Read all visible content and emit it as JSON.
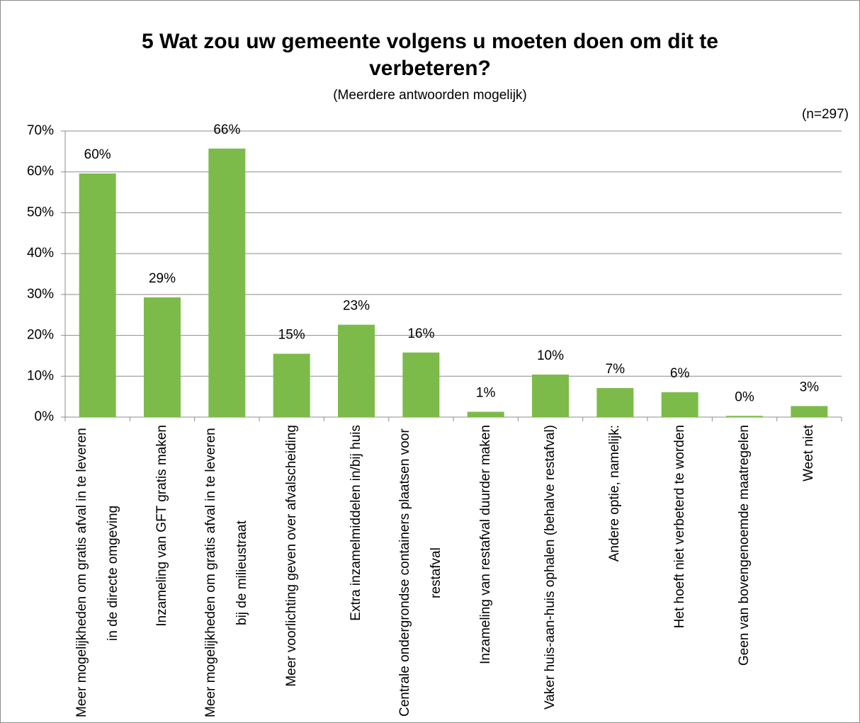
{
  "chart_data": {
    "type": "bar",
    "title": "5 Wat zou uw gemeente volgens u moeten doen om dit te verbeteren?",
    "subtitle": "(Meerdere antwoorden mogelijk)",
    "annotation": "(n=297)",
    "categories": [
      "Meer mogelijkheden om gratis afval in te leveren in de directe omgeving",
      "Inzameling van GFT gratis maken",
      "Meer mogelijkheden om gratis afval in te leveren bij de milieustraat",
      "Meer voorlichting geven over afvalscheiding",
      "Extra inzamelmiddelen in/bij huis",
      "Centrale ondergrondse containers plaatsen voor restafval",
      "Inzameling van restafval duurder maken",
      "Vaker huis-aan-huis ophalen (behalve restafval)",
      "Andere optie, namelijk:",
      "Het hoeft niet verbeterd te worden",
      "Geen van bovengenoemde maatregelen",
      "Weet niet"
    ],
    "values": [
      59.6,
      29.3,
      65.7,
      15.5,
      22.6,
      15.8,
      1.3,
      10.4,
      7.1,
      6.1,
      0.3,
      2.7
    ],
    "value_labels": [
      "60%",
      "29%",
      "66%",
      "15%",
      "23%",
      "16%",
      "1%",
      "10%",
      "7%",
      "6%",
      "0%",
      "3%"
    ],
    "color": "#7cbb4a",
    "ylim": [
      0,
      70
    ],
    "yticks": [
      {
        "value": 0,
        "label": "0%"
      },
      {
        "value": 10,
        "label": "10%"
      },
      {
        "value": 20,
        "label": "20%"
      },
      {
        "value": 30,
        "label": "30%"
      },
      {
        "value": 40,
        "label": "40%"
      },
      {
        "value": 50,
        "label": "50%"
      },
      {
        "value": 60,
        "label": "60%"
      },
      {
        "value": 70,
        "label": "70%"
      }
    ],
    "grid": true
  }
}
